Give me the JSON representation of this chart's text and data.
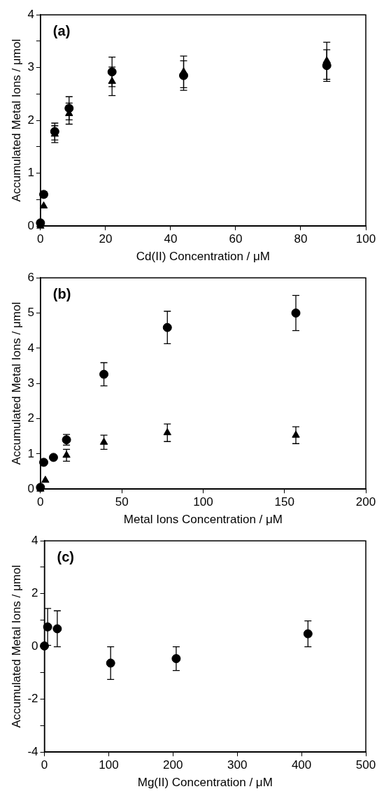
{
  "chart_data": [
    {
      "type": "scatter",
      "xlabel": "Cd(II) Concentration / μM",
      "ylabel": "Accumulated Metal Ions / μmol",
      "annotations": [
        "(a)"
      ],
      "xlim": [
        0,
        100
      ],
      "xticks": [
        0,
        20,
        40,
        60,
        80,
        100
      ],
      "ylim": [
        0,
        4
      ],
      "yticks": [
        0,
        {
          "value": 0.5,
          "label": null
        },
        1,
        {
          "value": 1.5,
          "label": null
        },
        2,
        {
          "value": 2.5,
          "label": null
        },
        3,
        {
          "value": 3.5,
          "label": null
        },
        4
      ],
      "series": [
        {
          "color": "#000000",
          "marker": "circle",
          "x": [
            0,
            1,
            4.4,
            8.8,
            22,
            44,
            88
          ],
          "values": [
            0.06,
            0.6,
            1.79,
            2.23,
            2.92,
            2.85,
            3.04
          ],
          "errors": [
            null,
            0.05,
            0.16,
            0.22,
            0.28,
            0.28,
            0.3
          ]
        },
        {
          "color": "#000000",
          "marker": "triangle",
          "x": [
            0,
            1,
            4.4,
            8.8,
            22,
            44,
            88
          ],
          "values": [
            0,
            0.38,
            1.74,
            2.13,
            2.74,
            2.92,
            3.13
          ],
          "errors": [
            null,
            null,
            0.16,
            0.2,
            0.27,
            0.3,
            0.35
          ]
        }
      ]
    },
    {
      "type": "scatter",
      "xlabel": "Metal Ions Concentration / μM",
      "ylabel": "Accumulated Metal Ions / μmol",
      "annotations": [
        "(b)"
      ],
      "xlim": [
        0,
        200
      ],
      "xticks": [
        0,
        50,
        100,
        150,
        200
      ],
      "ylim": [
        0,
        6
      ],
      "yticks": [
        0,
        1,
        2,
        3,
        4,
        5,
        6
      ],
      "series": [
        {
          "color": "#000000",
          "marker": "circle",
          "x": [
            0,
            2,
            8,
            16,
            39,
            78,
            157
          ],
          "values": [
            0.05,
            0.76,
            0.9,
            1.4,
            3.26,
            4.59,
            5.0
          ],
          "errors": [
            null,
            null,
            null,
            0.15,
            0.33,
            0.46,
            0.5
          ]
        },
        {
          "color": "#000000",
          "marker": "triangle",
          "x": [
            0,
            3,
            16,
            39,
            78,
            157
          ],
          "values": [
            0,
            0.25,
            0.96,
            1.33,
            1.6,
            1.53
          ],
          "errors": [
            null,
            null,
            0.17,
            0.2,
            0.25,
            0.24
          ]
        }
      ]
    },
    {
      "type": "scatter",
      "xlabel": "Mg(II) Concentration / μM",
      "ylabel": "Accumulated Metal Ions / μmol",
      "annotations": [
        "(c)"
      ],
      "xlim": [
        0,
        500
      ],
      "xticks": [
        0,
        100,
        200,
        300,
        400,
        500
      ],
      "ylim": [
        -4,
        4
      ],
      "yticks": [
        -4,
        {
          "value": -3,
          "label": null
        },
        -2,
        {
          "value": -1,
          "label": null
        },
        0,
        {
          "value": 1,
          "label": null
        },
        2,
        {
          "value": 3,
          "label": null
        },
        4
      ],
      "series": [
        {
          "color": "#000000",
          "marker": "circle",
          "x": [
            0,
            5,
            20,
            103,
            205,
            410
          ],
          "values": [
            0.02,
            0.74,
            0.67,
            -0.63,
            -0.46,
            0.48
          ],
          "errors": [
            null,
            0.7,
            0.68,
            0.62,
            0.45,
            0.49
          ]
        }
      ]
    }
  ]
}
